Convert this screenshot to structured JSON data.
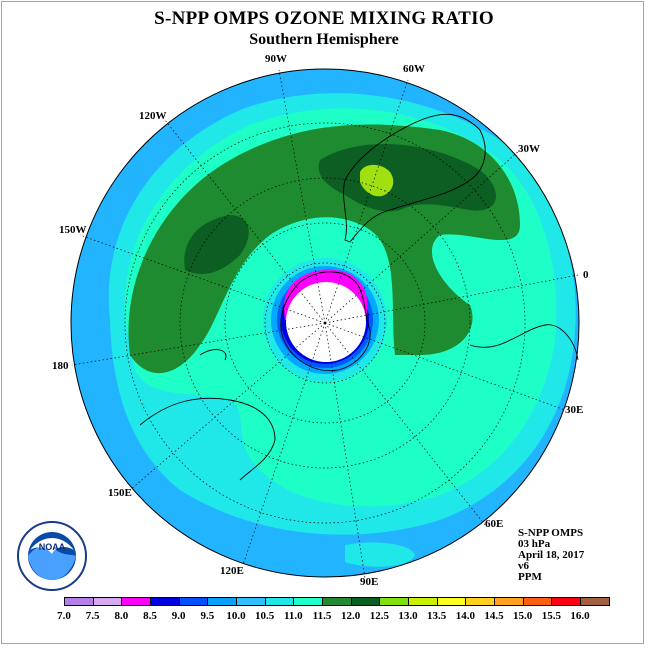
{
  "title": "S-NPP OMPS OZONE MIXING RATIO",
  "subtitle": "Southern Hemisphere",
  "longitude_labels": {
    "lon_90w": "90W",
    "lon_60w": "60W",
    "lon_120w": "120W",
    "lon_30w": "30W",
    "lon_150w": "150W",
    "lon_0": "0",
    "lon_180": "180",
    "lon_30e": "30E",
    "lon_150e": "150E",
    "lon_60e": "60E",
    "lon_120e": "120E",
    "lon_90e": "90E"
  },
  "info": {
    "instrument": "S-NPP OMPS",
    "level": "03 hPa",
    "date": "April 18, 2017",
    "version": "v6",
    "units": "PPM"
  },
  "logo_text": "NOAA",
  "colorbar": {
    "ticks": [
      "7.0",
      "7.5",
      "8.0",
      "8.5",
      "9.0",
      "9.5",
      "10.0",
      "10.5",
      "11.0",
      "11.5",
      "12.0",
      "12.5",
      "13.0",
      "13.5",
      "14.0",
      "14.5",
      "15.0",
      "15.5",
      "16.0"
    ],
    "colors": [
      "#b57ee8",
      "#d8a8f0",
      "#ff00ff",
      "#0000e0",
      "#0050ff",
      "#0aa0ff",
      "#30c0ff",
      "#20e8e8",
      "#20ffcc",
      "#208a30",
      "#0a6020",
      "#80e010",
      "#c8f000",
      "#ffff20",
      "#ffd020",
      "#ffa020",
      "#ff6010",
      "#ff0010",
      "#a06040"
    ]
  },
  "map_colors": {
    "ocean_band": "#22b4ff",
    "level_9_5": "#00a8ff",
    "level_10_5": "#20e8e8",
    "level_11": "#1effc8",
    "level_11_5": "#1f8b30",
    "level_12": "#0d5e23",
    "level_12_5": "#a0e010",
    "level_9": "#005bff",
    "level_8_5": "#0000e0",
    "level_8": "#ff00ff",
    "polar_night": "#ffffff"
  }
}
